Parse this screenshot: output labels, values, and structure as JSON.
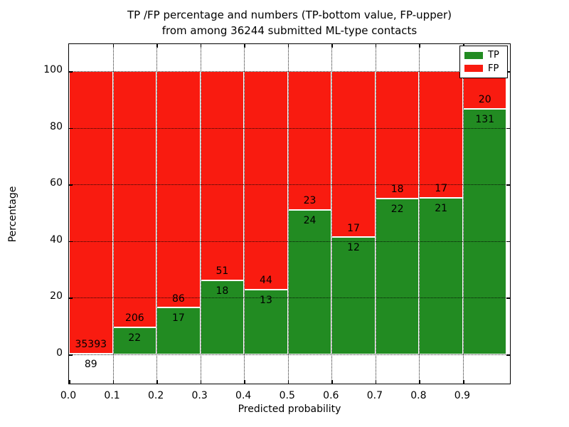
{
  "title": {
    "line1": "TP /FP percentage and numbers (TP-bottom value, FP-upper)",
    "line2": "from among 36244 submitted ML-type contacts"
  },
  "axes": {
    "xlabel": "Predicted probability",
    "ylabel": "Percentage",
    "x_tick_labels": [
      "0.0",
      "0.1",
      "0.2",
      "0.3",
      "0.4",
      "0.5",
      "0.6",
      "0.7",
      "0.8",
      "0.9"
    ],
    "y_tick_labels": [
      "0",
      "20",
      "40",
      "60",
      "80",
      "100"
    ],
    "y_tick_values": [
      0,
      20,
      40,
      60,
      80,
      100
    ],
    "grid_style": "dotted"
  },
  "colors": {
    "tp_green": "#228b22",
    "fp_red": "#f91b10",
    "grid_black": "#000000",
    "background": "#ffffff"
  },
  "legend": {
    "position": "upper right",
    "entries": [
      {
        "label": "TP",
        "color": "#228b22"
      },
      {
        "label": "FP",
        "color": "#f91b10"
      }
    ]
  },
  "chart_data": {
    "type": "bar",
    "subtype": "stacked-100-percent",
    "title": "TP /FP percentage and numbers (TP-bottom value, FP-upper) from among 36244 submitted ML-type contacts",
    "xlabel": "Predicted probability",
    "ylabel": "Percentage",
    "total_contacts": 36244,
    "bin_starts": [
      0.0,
      0.1,
      0.2,
      0.3,
      0.4,
      0.5,
      0.6,
      0.7,
      0.8,
      0.9
    ],
    "bin_width": 0.1,
    "categories": [
      "0.0-0.1",
      "0.1-0.2",
      "0.2-0.3",
      "0.3-0.4",
      "0.4-0.5",
      "0.5-0.6",
      "0.6-0.7",
      "0.7-0.8",
      "0.8-0.9",
      "0.9-1.0"
    ],
    "series": [
      {
        "name": "TP",
        "color": "#228b22",
        "counts": [
          89,
          22,
          17,
          18,
          13,
          24,
          12,
          22,
          21,
          131
        ]
      },
      {
        "name": "FP",
        "color": "#f91b10",
        "counts": [
          35393,
          206,
          86,
          51,
          44,
          23,
          17,
          18,
          17,
          20
        ]
      }
    ],
    "tp_percent_of_bin": [
      0.25,
      9.65,
      16.5,
      26.09,
      22.81,
      51.06,
      41.38,
      55.0,
      55.26,
      86.75
    ],
    "ylim_percent": [
      0,
      100
    ],
    "grid": true,
    "legend_position": "upper right"
  }
}
